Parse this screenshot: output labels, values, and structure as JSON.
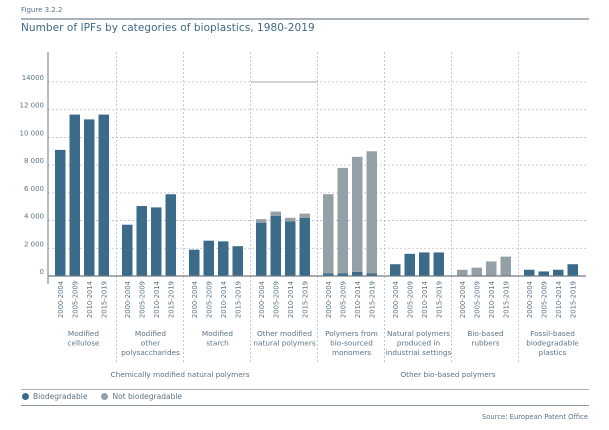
{
  "figure_label": "Figure 3.2.2",
  "title": "Number of IPFs by categories of bioplastics, 1980-2019",
  "source": "Source: European Patent Office",
  "legend": [
    {
      "label": "Biodegradable",
      "color": "#3c6b8a"
    },
    {
      "label": "Not biodegradable",
      "color": "#959fa6"
    }
  ],
  "colors": {
    "biodegradable": "#3c6b8a",
    "not_biodegradable": "#959fa6",
    "axis": "#6d7b86",
    "grid": "#b7bec4",
    "text": "#5d7383"
  },
  "chart_data": {
    "type": "bar",
    "stacked": true,
    "title": "Number of IPFs by categories of bioplastics, 1980-2019",
    "xlabel": "",
    "ylabel": "",
    "ylim": [
      0,
      14000
    ],
    "yticks": [
      0,
      2000,
      4000,
      6000,
      8000,
      10000,
      12000,
      14000
    ],
    "ytick_labels": [
      "0",
      "2 000",
      "4 000",
      "6 000",
      "8 000",
      "10 000",
      "12 000",
      "14000"
    ],
    "grid": true,
    "legend_position": "bottom-left",
    "periods": [
      "2000-2004",
      "2005-2009",
      "2010-2014",
      "2015-2019"
    ],
    "groups": [
      {
        "name": "Chemically modified natural polymers",
        "categories": [
          0,
          1,
          2,
          3
        ]
      },
      {
        "name": "Other bio-based polymers",
        "categories": [
          4,
          5,
          6,
          7
        ]
      }
    ],
    "categories": [
      {
        "label": [
          "Modified",
          "cellulose"
        ],
        "biodegradable": [
          9100,
          11650,
          11300,
          11650
        ],
        "not_biodegradable": [
          0,
          0,
          0,
          0
        ]
      },
      {
        "label": [
          "Modified",
          "other",
          "polysaccharides"
        ],
        "biodegradable": [
          3700,
          5050,
          4950,
          5900
        ],
        "not_biodegradable": [
          0,
          0,
          0,
          0
        ]
      },
      {
        "label": [
          "Modified",
          "starch"
        ],
        "biodegradable": [
          1900,
          2550,
          2500,
          2150
        ],
        "not_biodegradable": [
          0,
          0,
          0,
          0
        ]
      },
      {
        "label": [
          "Other modified",
          "natural polymers"
        ],
        "biodegradable": [
          3850,
          4350,
          3950,
          4200
        ],
        "not_biodegradable": [
          250,
          300,
          250,
          300
        ]
      },
      {
        "label": [
          "Polymers from",
          "bio-sourced",
          "monomers"
        ],
        "biodegradable": [
          200,
          200,
          300,
          200
        ],
        "not_biodegradable": [
          5700,
          7600,
          8300,
          8800
        ]
      },
      {
        "label": [
          "Natural polymers",
          "produced in",
          "industrial settings"
        ],
        "biodegradable": [
          850,
          1600,
          1700,
          1700
        ],
        "not_biodegradable": [
          0,
          0,
          0,
          0
        ]
      },
      {
        "label": [
          "Bio-based",
          "rubbers"
        ],
        "biodegradable": [
          0,
          0,
          0,
          0
        ],
        "not_biodegradable": [
          450,
          600,
          1050,
          1400
        ]
      },
      {
        "label": [
          "Fossil-based",
          "biodegradable",
          "plastics"
        ],
        "biodegradable": [
          450,
          330,
          450,
          850
        ],
        "not_biodegradable": [
          0,
          0,
          0,
          0
        ]
      }
    ]
  }
}
